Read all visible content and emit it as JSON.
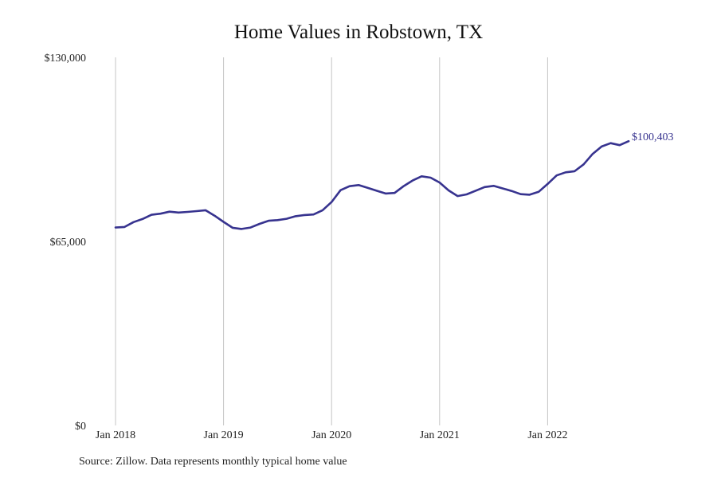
{
  "chart_data": {
    "type": "line",
    "title": "Home Values in Robstown, TX",
    "source": "Source: Zillow. Data represents monthly typical home value",
    "ylim": [
      0,
      130000
    ],
    "y_ticks": [
      {
        "value": 0,
        "label": "$0"
      },
      {
        "value": 65000,
        "label": "$65,000"
      },
      {
        "value": 130000,
        "label": "$130,000"
      }
    ],
    "x_ticks": [
      {
        "index": 0,
        "label": "Jan 2018"
      },
      {
        "index": 12,
        "label": "Jan 2019"
      },
      {
        "index": 24,
        "label": "Jan 2020"
      },
      {
        "index": 36,
        "label": "Jan 2021"
      },
      {
        "index": 48,
        "label": "Jan 2022"
      }
    ],
    "grid": "vertical",
    "series": [
      {
        "start": "Jan 2018",
        "frequency": "monthly",
        "end_label": "$100,403",
        "values": [
          69900,
          70100,
          71800,
          72900,
          74400,
          74800,
          75500,
          75200,
          75400,
          75700,
          76000,
          74100,
          71900,
          69800,
          69400,
          69900,
          71200,
          72300,
          72500,
          73000,
          73900,
          74300,
          74500,
          76000,
          78900,
          83100,
          84500,
          84900,
          83900,
          82900,
          81900,
          82100,
          84500,
          86500,
          88000,
          87500,
          85800,
          83000,
          81000,
          81600,
          82900,
          84200,
          84600,
          83700,
          82800,
          81700,
          81500,
          82500,
          85300,
          88300,
          89400,
          89800,
          92200,
          95900,
          98500,
          99700,
          99000,
          100403
        ]
      }
    ],
    "colors": {
      "line": "#37338f",
      "grid": "#c4c4c4",
      "text": "#222222"
    }
  }
}
